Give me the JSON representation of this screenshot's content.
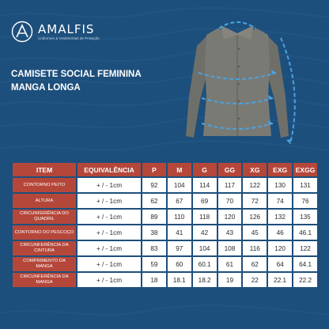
{
  "brand": {
    "name": "AMALFIS",
    "tagline": "Uniformes & Vestimentas de Proteção"
  },
  "product": {
    "line1": "CAMISETE SOCIAL FEMININA",
    "line2": "MANGA LONGA"
  },
  "table": {
    "headers": [
      "ITEM",
      "EQUIVALÊNCIA",
      "P",
      "M",
      "G",
      "GG",
      "XG",
      "EXG",
      "EXGG"
    ],
    "rows": [
      {
        "item": "CONTORNO PEITO",
        "eq": "+ / -  1cm",
        "values": [
          "92",
          "104",
          "114",
          "117",
          "122",
          "130",
          "131"
        ]
      },
      {
        "item": "ALTURA",
        "eq": "+ / -  1cm",
        "values": [
          "62",
          "67",
          "69",
          "70",
          "72",
          "74",
          "76"
        ]
      },
      {
        "item": "CIRCUNFERÊNCIA DO QUADRIL",
        "eq": "+ / -  1cm",
        "values": [
          "89",
          "110",
          "118",
          "120",
          "126",
          "132",
          "135"
        ]
      },
      {
        "item": "CONTORNO DO PESCOÇO",
        "eq": "+ / -  1cm",
        "values": [
          "38",
          "41",
          "42",
          "43",
          "45",
          "46",
          "46.1"
        ]
      },
      {
        "item": "CIRCUNFERÊNCIA DA CINTURA",
        "eq": "+ / -  1cm",
        "values": [
          "83",
          "97",
          "104",
          "108",
          "116",
          "120",
          "122"
        ]
      },
      {
        "item": "COMPRIMENTO DA MANGA",
        "eq": "+ / -  1cm",
        "values": [
          "59",
          "60",
          "60.1",
          "61",
          "62",
          "64",
          "64.1"
        ]
      },
      {
        "item": "CIRCUNFERÊNCIA DA MANGA",
        "eq": "+ / -  1cm",
        "values": [
          "18",
          "18.1",
          "18.2",
          "19",
          "22",
          "22.1",
          "22.2"
        ]
      }
    ]
  },
  "colors": {
    "background": "#1d4f7c",
    "header": "#b5473a",
    "cell": "#ffffff",
    "shirt": "#7a7a74",
    "arrow": "#4aa3e0"
  }
}
